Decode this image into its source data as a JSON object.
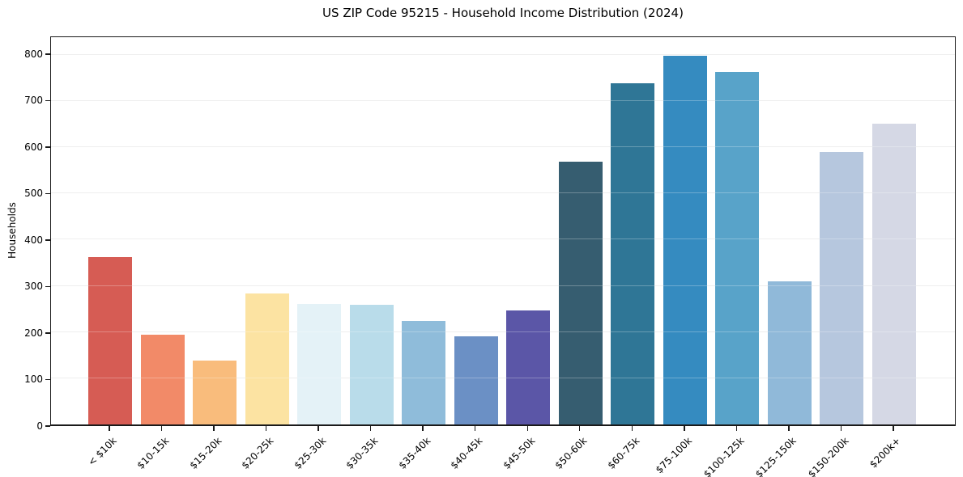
{
  "chart_data": {
    "type": "bar",
    "title": "US ZIP Code 95215 - Household Income Distribution (2024)",
    "xlabel": "",
    "ylabel": "Households",
    "categories": [
      "< $10k",
      "$10-15k",
      "$15-20k",
      "$20-25k",
      "$25-30k",
      "$30-35k",
      "$35-40k",
      "$40-45k",
      "$45-50k",
      "$50-60k",
      "$60-75k",
      "$75-100k",
      "$100-125k",
      "$125-150k",
      "$150-200k",
      "$200k+"
    ],
    "values": [
      362,
      195,
      139,
      284,
      260,
      259,
      224,
      191,
      247,
      568,
      739,
      798,
      763,
      309,
      589,
      650
    ],
    "bar_colors": [
      "#d65c54",
      "#f28a68",
      "#f9bc7c",
      "#fce3a2",
      "#e4f2f7",
      "#b9dcea",
      "#8fbcda",
      "#6b90c5",
      "#5b56a7",
      "#365d70",
      "#2f7696",
      "#358bc0",
      "#58a3c9",
      "#90b9d9",
      "#b6c7de",
      "#d5d8e5"
    ],
    "yticks": [
      0,
      100,
      200,
      300,
      400,
      500,
      600,
      700,
      800
    ],
    "ylim": [
      0,
      838
    ],
    "grid": true,
    "legend": false,
    "colors": {
      "background": "#ffffff",
      "grid": "#e8e8e8",
      "axis": "#1a1a1a",
      "text": "#000000"
    }
  }
}
